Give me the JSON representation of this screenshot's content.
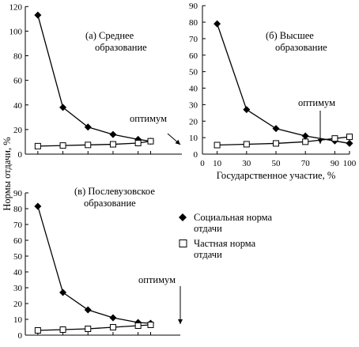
{
  "y_axis_title": "Нормы отдачи, %",
  "x_axis_title": "Государственное участие, %",
  "optimum_label": "оптимум",
  "legend": [
    {
      "label": "Социальная норма",
      "label2": "отдачи",
      "marker": "filled-diamond"
    },
    {
      "label": "Частная норма",
      "label2": "отдачи",
      "marker": "open-square"
    }
  ],
  "chart_data": [
    {
      "type": "line",
      "panel_title": [
        "(а) Среднее",
        "образование"
      ],
      "x": [
        10,
        30,
        50,
        70,
        90,
        100
      ],
      "ylim": [
        0,
        120
      ],
      "yticks": [
        0,
        20,
        40,
        60,
        80,
        100,
        120
      ],
      "series": [
        {
          "name": "Социальная норма отдачи",
          "marker": "filled-diamond",
          "values": [
            113,
            38,
            22,
            16,
            12,
            10.5
          ]
        },
        {
          "name": "Частная норма отдачи",
          "marker": "open-square",
          "values": [
            6.5,
            7,
            7.5,
            8,
            9,
            10.5
          ]
        }
      ],
      "optimum_x": 100
    },
    {
      "type": "line",
      "panel_title": [
        "(б) Высшее",
        "образование"
      ],
      "x": [
        10,
        30,
        50,
        70,
        90,
        100
      ],
      "xlim": [
        0,
        100
      ],
      "xticks": [
        0,
        10,
        30,
        50,
        70,
        90,
        100
      ],
      "ylim": [
        0,
        90
      ],
      "yticks": [
        0,
        10,
        20,
        30,
        40,
        50,
        60,
        70,
        80,
        90
      ],
      "series": [
        {
          "name": "Социальная норма отдачи",
          "marker": "filled-diamond",
          "values": [
            79,
            27,
            15.5,
            11,
            8,
            6.5
          ]
        },
        {
          "name": "Частная норма отдачи",
          "marker": "open-square",
          "values": [
            5.5,
            6,
            6.5,
            7.5,
            9.5,
            10.5
          ]
        }
      ],
      "optimum_x": 85
    },
    {
      "type": "line",
      "panel_title": [
        "(в) Послевузовское",
        "образование"
      ],
      "x": [
        10,
        30,
        50,
        70,
        90,
        100
      ],
      "ylim": [
        0,
        90
      ],
      "yticks": [
        0,
        10,
        20,
        30,
        40,
        50,
        60,
        70,
        80,
        90
      ],
      "series": [
        {
          "name": "Социальная норма отдачи",
          "marker": "filled-diamond",
          "values": [
            81.5,
            27,
            16,
            11,
            8,
            7.5
          ]
        },
        {
          "name": "Частная норма отдачи",
          "marker": "open-square",
          "values": [
            3,
            3.5,
            4,
            5,
            6,
            6.5
          ]
        }
      ],
      "optimum_x": 100
    }
  ]
}
